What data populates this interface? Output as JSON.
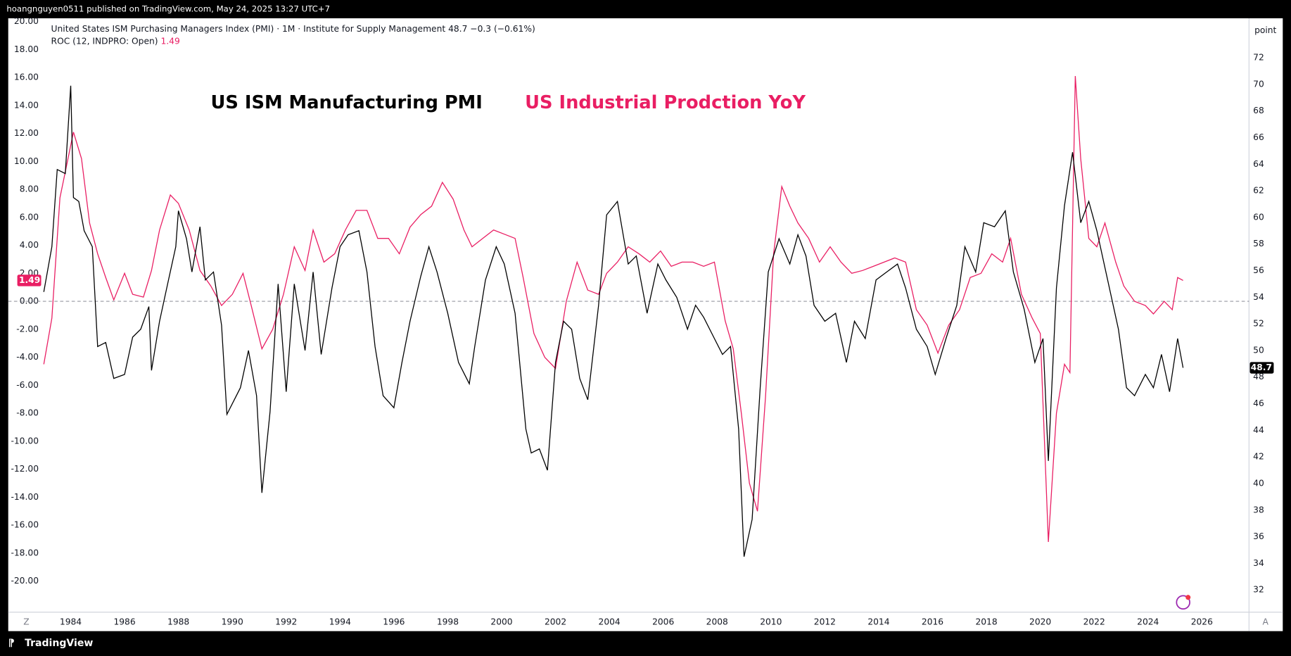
{
  "header": {
    "byline": "hoangnguyen0511 published on TradingView.com, May 24, 2025 13:27 UTC+7"
  },
  "footer": {
    "brand": "TradingView",
    "left_button": "Z",
    "right_button": "A"
  },
  "chart_data": {
    "type": "line",
    "annotations": [
      {
        "text": "US ISM Manufacturing PMI",
        "color": "#000000"
      },
      {
        "text": "US Industrial Prodction YoY",
        "color": "#e91e63"
      }
    ],
    "y2_axis_label": "point",
    "xlim": [
      1981.68,
      2027.75
    ],
    "xticks": [
      1984,
      1986,
      1988,
      1990,
      1992,
      1994,
      1996,
      1998,
      2000,
      2002,
      2004,
      2006,
      2008,
      2010,
      2012,
      2014,
      2016,
      2018,
      2020,
      2022,
      2024,
      2026
    ],
    "ylim": [
      -22.22,
      20.23
    ],
    "yticks": [
      {
        "value": 20,
        "label": "20.00"
      },
      {
        "value": 18,
        "label": "18.00"
      },
      {
        "value": 16,
        "label": "16.00"
      },
      {
        "value": 14,
        "label": "14.00"
      },
      {
        "value": 12,
        "label": "12.00"
      },
      {
        "value": 10,
        "label": "10.00"
      },
      {
        "value": 8,
        "label": "8.00"
      },
      {
        "value": 6,
        "label": "6.00"
      },
      {
        "value": 4,
        "label": "4.00"
      },
      {
        "value": 2,
        "label": "2.00"
      },
      {
        "value": 0,
        "label": "0.00"
      },
      {
        "value": -2,
        "label": "-2.00"
      },
      {
        "value": -4,
        "label": "-4.00"
      },
      {
        "value": -6,
        "label": "-6.00"
      },
      {
        "value": -8,
        "label": "-8.00"
      },
      {
        "value": -10,
        "label": "-10.00"
      },
      {
        "value": -12,
        "label": "-12.00"
      },
      {
        "value": -14,
        "label": "-14.00"
      },
      {
        "value": -16,
        "label": "-16.00"
      },
      {
        "value": -18,
        "label": "-18.00"
      },
      {
        "value": -20,
        "label": "-20.00"
      }
    ],
    "y2lim": [
      30.33,
      74.97
    ],
    "y2ticks": [
      32,
      34,
      36,
      38,
      40,
      42,
      44,
      46,
      48,
      50,
      52,
      54,
      56,
      58,
      60,
      62,
      64,
      66,
      68,
      70,
      72
    ],
    "reference_line": 0,
    "series": [
      {
        "name": "United States ISM Purchasing Managers Index (PMI) · 1M · Institute for Supply Management",
        "color": "#000000",
        "axis": "y2",
        "change_label": "−0.3 (−0.61%)",
        "x": [
          1983.0,
          1983.3,
          1983.5,
          1983.8,
          1984.0,
          1984.1,
          1984.3,
          1984.5,
          1984.8,
          1985.0,
          1985.3,
          1985.6,
          1986.0,
          1986.3,
          1986.6,
          1986.9,
          1987.0,
          1987.3,
          1987.6,
          1987.9,
          1988.0,
          1988.3,
          1988.5,
          1988.8,
          1989.0,
          1989.3,
          1989.6,
          1989.8,
          1990.3,
          1990.6,
          1990.9,
          1991.1,
          1991.4,
          1991.7,
          1992.0,
          1992.3,
          1992.7,
          1993.0,
          1993.3,
          1993.7,
          1994.0,
          1994.3,
          1994.7,
          1995.0,
          1995.3,
          1995.6,
          1996.0,
          1996.3,
          1996.6,
          1997.0,
          1997.3,
          1997.6,
          1998.0,
          1998.4,
          1998.8,
          1999.0,
          1999.4,
          1999.8,
          2000.1,
          2000.5,
          2000.9,
          2001.1,
          2001.4,
          2001.7,
          2002.0,
          2002.3,
          2002.6,
          2002.9,
          2003.2,
          2003.6,
          2003.9,
          2004.3,
          2004.7,
          2005.0,
          2005.4,
          2005.8,
          2006.1,
          2006.5,
          2006.9,
          2007.2,
          2007.5,
          2007.9,
          2008.2,
          2008.5,
          2008.8,
          2009.0,
          2009.3,
          2009.6,
          2009.9,
          2010.3,
          2010.7,
          2011.0,
          2011.3,
          2011.6,
          2012.0,
          2012.4,
          2012.8,
          2013.1,
          2013.5,
          2013.9,
          2014.3,
          2014.7,
          2015.0,
          2015.4,
          2015.8,
          2016.1,
          2016.5,
          2016.9,
          2017.2,
          2017.6,
          2017.9,
          2018.3,
          2018.7,
          2019.0,
          2019.4,
          2019.8,
          2020.1,
          2020.3,
          2020.6,
          2020.9,
          2021.2,
          2021.5,
          2021.8,
          2022.1,
          2022.5,
          2022.9,
          2023.2,
          2023.5,
          2023.9,
          2024.2,
          2024.5,
          2024.8,
          2025.1,
          2025.3
        ],
        "values": [
          54.4,
          57.8,
          63.6,
          63.3,
          69.9,
          61.5,
          61.2,
          59,
          57.8,
          50.3,
          50.6,
          47.9,
          48.2,
          51,
          51.6,
          53.3,
          48.5,
          52.2,
          55,
          57.8,
          60.5,
          58.4,
          55.9,
          59.3,
          55.3,
          55.9,
          51.9,
          45.2,
          47.2,
          50,
          46.6,
          39.3,
          45.4,
          55,
          46.9,
          55,
          50,
          55.9,
          49.7,
          54.7,
          57.8,
          58.7,
          59,
          55.9,
          50.3,
          46.6,
          45.7,
          49.1,
          52.2,
          55.6,
          57.8,
          55.9,
          52.8,
          49.1,
          47.5,
          50.3,
          55.3,
          57.8,
          56.5,
          52.8,
          44.1,
          42.3,
          42.6,
          41,
          49.1,
          52.2,
          51.6,
          47.9,
          46.3,
          53.4,
          60.2,
          61.2,
          56.5,
          57.1,
          52.8,
          56.5,
          55.3,
          54,
          51.6,
          53.4,
          52.5,
          50.9,
          49.7,
          50.3,
          44.1,
          34.5,
          37.3,
          47.2,
          55.9,
          58.4,
          56.5,
          58.7,
          57.1,
          53.4,
          52.2,
          52.8,
          49.1,
          52.2,
          50.9,
          55.3,
          55.9,
          56.5,
          54.7,
          51.6,
          50.3,
          48.2,
          50.9,
          53.4,
          57.8,
          55.9,
          59.6,
          59.3,
          60.5,
          55.9,
          53.1,
          49.1,
          50.9,
          41.7,
          54.7,
          60.9,
          64.9,
          59.6,
          61.2,
          59,
          55.3,
          51.6,
          47.2,
          46.6,
          48.2,
          47.2,
          49.7,
          46.9,
          50.9,
          48.7
        ]
      },
      {
        "name": "ROC (12, INDPRO: Open)",
        "color": "#e91e63",
        "axis": "y",
        "x": [
          1983.0,
          1983.3,
          1983.6,
          1983.9,
          1984.1,
          1984.4,
          1984.7,
          1985.0,
          1985.3,
          1985.6,
          1986.0,
          1986.3,
          1986.7,
          1987.0,
          1987.3,
          1987.7,
          1988.0,
          1988.4,
          1988.8,
          1989.2,
          1989.6,
          1990.0,
          1990.4,
          1990.7,
          1991.1,
          1991.5,
          1991.9,
          1992.3,
          1992.7,
          1993.0,
          1993.4,
          1993.8,
          1994.2,
          1994.6,
          1995.0,
          1995.4,
          1995.8,
          1996.2,
          1996.6,
          1997.0,
          1997.4,
          1997.8,
          1998.2,
          1998.6,
          1998.9,
          1999.3,
          1999.7,
          2000.1,
          2000.5,
          2000.8,
          2001.2,
          2001.6,
          2002.0,
          2002.4,
          2002.8,
          2003.2,
          2003.6,
          2003.9,
          2004.3,
          2004.7,
          2005.1,
          2005.5,
          2005.9,
          2006.3,
          2006.7,
          2007.1,
          2007.5,
          2007.9,
          2008.3,
          2008.6,
          2008.9,
          2009.2,
          2009.5,
          2009.8,
          2010.1,
          2010.4,
          2010.7,
          2011.0,
          2011.4,
          2011.8,
          2012.2,
          2012.6,
          2013.0,
          2013.4,
          2013.8,
          2014.2,
          2014.6,
          2015.0,
          2015.4,
          2015.8,
          2016.2,
          2016.6,
          2017.0,
          2017.4,
          2017.8,
          2018.2,
          2018.6,
          2018.9,
          2019.3,
          2019.7,
          2020.0,
          2020.3,
          2020.6,
          2020.9,
          2021.1,
          2021.3,
          2021.5,
          2021.8,
          2022.1,
          2022.4,
          2022.8,
          2023.1,
          2023.5,
          2023.9,
          2024.2,
          2024.6,
          2024.9,
          2025.1,
          2025.3
        ],
        "values": [
          -4.5,
          -1.2,
          7.4,
          10.2,
          12.1,
          10.2,
          5.6,
          3.4,
          1.7,
          0.1,
          2.0,
          0.5,
          0.3,
          2.2,
          5.1,
          7.6,
          7.0,
          5.1,
          2.2,
          1.1,
          -0.3,
          0.5,
          2.0,
          -0.3,
          -3.4,
          -2.0,
          0.5,
          3.9,
          2.2,
          5.1,
          2.8,
          3.4,
          5.1,
          6.5,
          6.5,
          4.5,
          4.5,
          3.4,
          5.3,
          6.2,
          6.8,
          8.5,
          7.3,
          5.1,
          3.9,
          4.5,
          5.1,
          4.8,
          4.5,
          1.7,
          -2.3,
          -4.0,
          -4.8,
          0,
          2.8,
          0.8,
          0.5,
          2.0,
          2.8,
          3.9,
          3.4,
          2.8,
          3.6,
          2.5,
          2.8,
          2.8,
          2.5,
          2.8,
          -1.4,
          -3.4,
          -8.0,
          -13.0,
          -15.0,
          -6.8,
          3.4,
          8.2,
          6.8,
          5.6,
          4.5,
          2.8,
          3.9,
          2.8,
          2.0,
          2.2,
          2.5,
          2.8,
          3.1,
          2.8,
          -0.6,
          -1.7,
          -3.7,
          -1.7,
          -0.6,
          1.7,
          2.0,
          3.4,
          2.8,
          4.5,
          0.5,
          -1.2,
          -2.3,
          -17.2,
          -8.0,
          -4.5,
          -5.1,
          16.1,
          10.2,
          4.5,
          3.9,
          5.6,
          2.8,
          1.1,
          0,
          -0.3,
          -0.9,
          0,
          -0.6,
          1.7,
          1.49
        ]
      }
    ]
  }
}
